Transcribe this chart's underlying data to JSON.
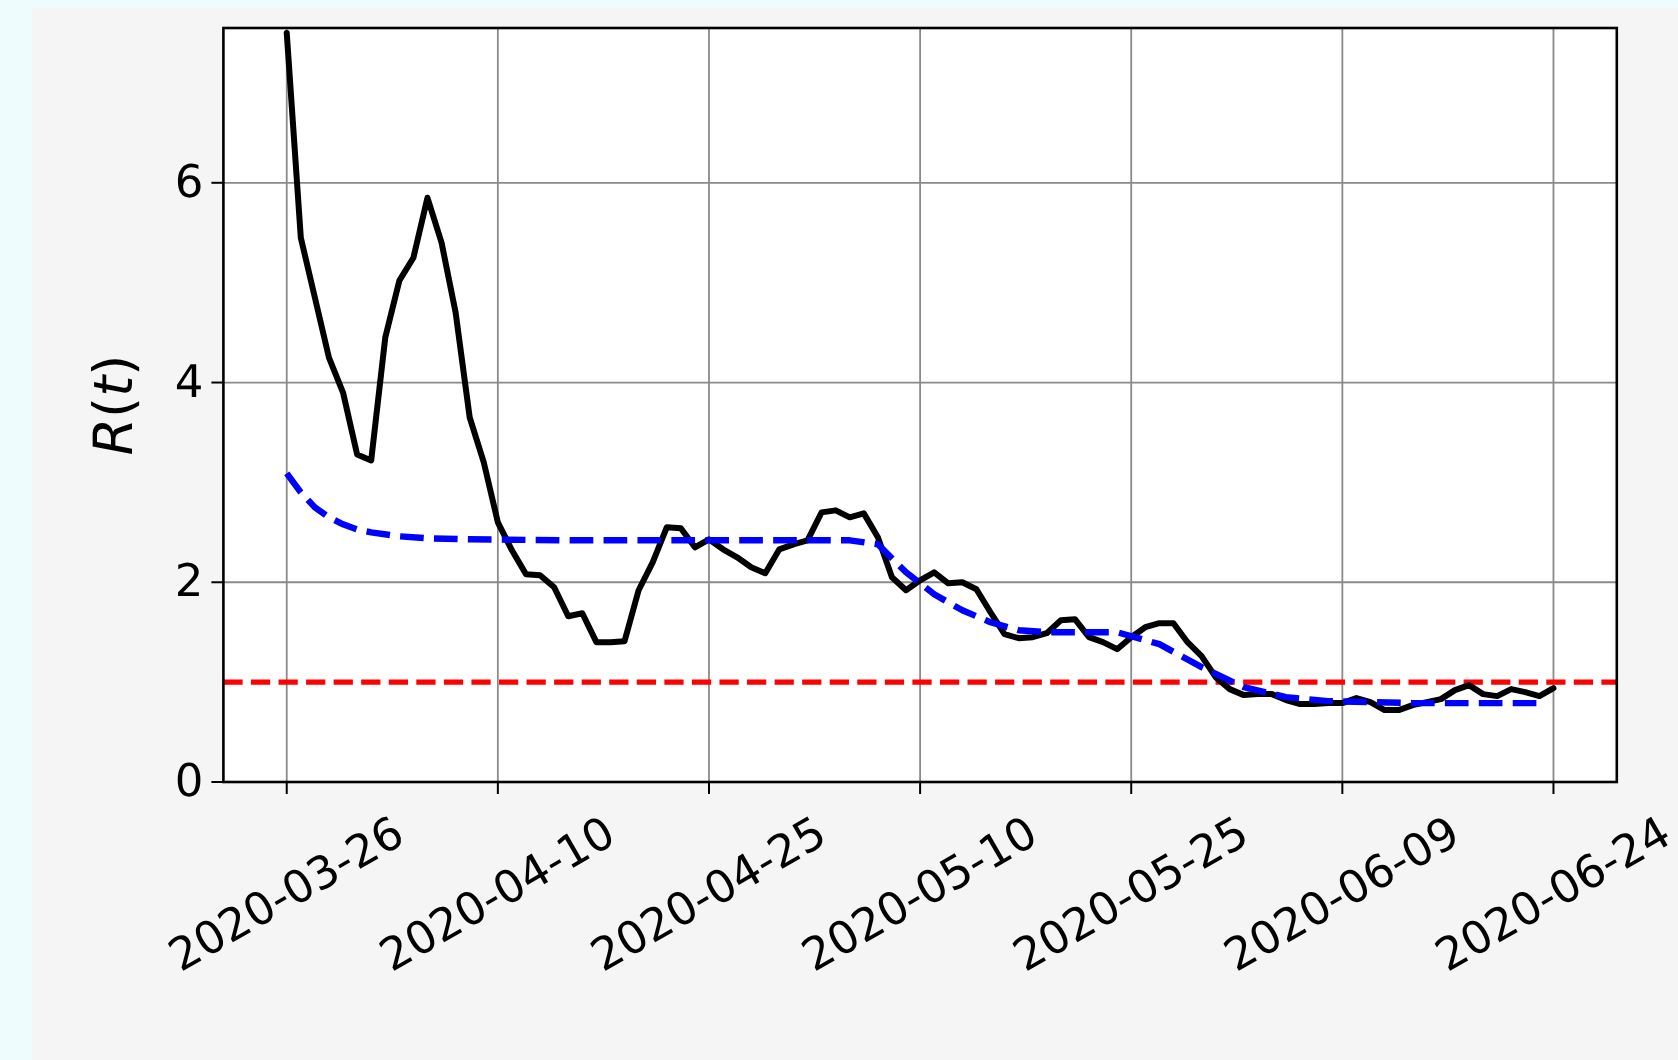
{
  "chart_data": {
    "type": "line",
    "ylabel": "R(t)",
    "xlim": [
      "2020-03-21T12:00",
      "2020-06-28T12:00"
    ],
    "xticks": [
      "2020-03-26",
      "2020-04-10",
      "2020-04-25",
      "2020-05-10",
      "2020-05-25",
      "2020-06-09",
      "2020-06-24"
    ],
    "ylim": [
      0,
      7.55
    ],
    "yticks": [
      0,
      2,
      4,
      6
    ],
    "grid": true,
    "series": [
      {
        "color": "#000000",
        "line_style": "solid",
        "x": [
          "2020-03-26",
          "2020-03-27",
          "2020-03-28",
          "2020-03-29",
          "2020-03-30",
          "2020-03-31",
          "2020-04-01",
          "2020-04-02",
          "2020-04-03",
          "2020-04-04",
          "2020-04-05",
          "2020-04-06",
          "2020-04-07",
          "2020-04-08",
          "2020-04-09",
          "2020-04-10",
          "2020-04-11",
          "2020-04-12",
          "2020-04-13",
          "2020-04-14",
          "2020-04-15",
          "2020-04-16",
          "2020-04-17",
          "2020-04-18",
          "2020-04-19",
          "2020-04-20",
          "2020-04-21",
          "2020-04-22",
          "2020-04-23",
          "2020-04-24",
          "2020-04-25",
          "2020-04-26",
          "2020-04-27",
          "2020-04-28",
          "2020-04-29",
          "2020-04-30",
          "2020-05-01",
          "2020-05-02",
          "2020-05-03",
          "2020-05-04",
          "2020-05-05",
          "2020-05-06",
          "2020-05-07",
          "2020-05-08",
          "2020-05-09",
          "2020-05-10",
          "2020-05-11",
          "2020-05-12",
          "2020-05-13",
          "2020-05-14",
          "2020-05-15",
          "2020-05-16",
          "2020-05-17",
          "2020-05-18",
          "2020-05-19",
          "2020-05-20",
          "2020-05-21",
          "2020-05-22",
          "2020-05-23",
          "2020-05-24",
          "2020-05-25",
          "2020-05-26",
          "2020-05-27",
          "2020-05-28",
          "2020-05-29",
          "2020-05-30",
          "2020-05-31",
          "2020-06-01",
          "2020-06-02",
          "2020-06-03",
          "2020-06-04",
          "2020-06-05",
          "2020-06-06",
          "2020-06-07",
          "2020-06-08",
          "2020-06-09",
          "2020-06-10",
          "2020-06-11",
          "2020-06-12",
          "2020-06-13",
          "2020-06-14",
          "2020-06-15",
          "2020-06-16",
          "2020-06-17",
          "2020-06-18",
          "2020-06-19",
          "2020-06-20",
          "2020-06-21",
          "2020-06-22",
          "2020-06-23",
          "2020-06-24"
        ],
        "values": [
          7.5,
          5.45,
          4.85,
          4.25,
          3.9,
          3.28,
          3.22,
          4.45,
          5.02,
          5.25,
          5.85,
          5.4,
          4.7,
          3.65,
          3.2,
          2.6,
          2.32,
          2.08,
          2.07,
          1.95,
          1.66,
          1.69,
          1.4,
          1.4,
          1.41,
          1.92,
          2.2,
          2.55,
          2.54,
          2.35,
          2.43,
          2.33,
          2.25,
          2.15,
          2.09,
          2.33,
          2.38,
          2.42,
          2.7,
          2.72,
          2.65,
          2.69,
          2.45,
          2.05,
          1.92,
          2.02,
          2.1,
          1.99,
          2.0,
          1.93,
          1.7,
          1.48,
          1.44,
          1.45,
          1.49,
          1.62,
          1.63,
          1.45,
          1.4,
          1.33,
          1.45,
          1.55,
          1.59,
          1.59,
          1.4,
          1.26,
          1.05,
          0.93,
          0.87,
          0.88,
          0.88,
          0.82,
          0.78,
          0.78,
          0.79,
          0.79,
          0.84,
          0.8,
          0.72,
          0.72,
          0.77,
          0.8,
          0.83,
          0.92,
          0.97,
          0.88,
          0.86,
          0.93,
          0.9,
          0.86,
          0.94
        ]
      },
      {
        "color": "#0000ff",
        "line_style": "dashed",
        "x": [
          "2020-03-26",
          "2020-03-27",
          "2020-03-28",
          "2020-03-29",
          "2020-03-30",
          "2020-03-31",
          "2020-04-01",
          "2020-04-03",
          "2020-04-05",
          "2020-04-08",
          "2020-04-15",
          "2020-04-25",
          "2020-05-05",
          "2020-05-07",
          "2020-05-09",
          "2020-05-11",
          "2020-05-13",
          "2020-05-15",
          "2020-05-17",
          "2020-05-19",
          "2020-05-21",
          "2020-05-24",
          "2020-05-27",
          "2020-05-30",
          "2020-06-02",
          "2020-06-05",
          "2020-06-08",
          "2020-06-14",
          "2020-06-23"
        ],
        "values": [
          3.09,
          2.9,
          2.75,
          2.65,
          2.58,
          2.53,
          2.5,
          2.46,
          2.44,
          2.43,
          2.42,
          2.42,
          2.42,
          2.38,
          2.1,
          1.88,
          1.72,
          1.6,
          1.52,
          1.5,
          1.5,
          1.5,
          1.38,
          1.15,
          0.95,
          0.85,
          0.81,
          0.79,
          0.79
        ]
      }
    ],
    "ref_lines": [
      {
        "axis": "y",
        "value": 1,
        "color": "#ff0000",
        "line_style": "dashed"
      }
    ]
  }
}
